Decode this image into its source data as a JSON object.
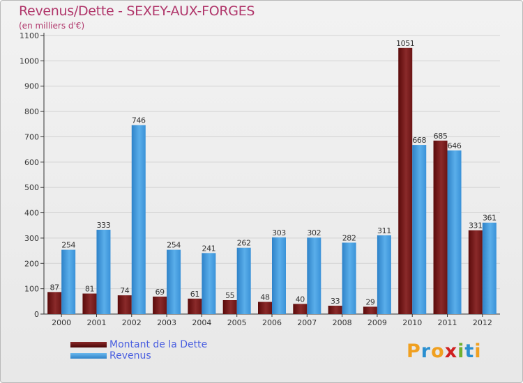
{
  "chart_data": {
    "type": "bar",
    "title": "Revenus/Dette - SEXEY-AUX-FORGES",
    "subtitle": "(en milliers d'€)",
    "categories": [
      "2000",
      "2001",
      "2002",
      "2003",
      "2004",
      "2005",
      "2006",
      "2007",
      "2008",
      "2009",
      "2010",
      "2011",
      "2012"
    ],
    "series": [
      {
        "name": "Montant de la Dette",
        "color": "#7a1a1a",
        "values": [
          87,
          81,
          74,
          69,
          61,
          55,
          48,
          40,
          33,
          29,
          1051,
          685,
          331
        ]
      },
      {
        "name": "Revenus",
        "color": "#3a92d8",
        "values": [
          254,
          333,
          746,
          254,
          241,
          262,
          303,
          302,
          282,
          311,
          668,
          646,
          361
        ]
      }
    ],
    "ylim": [
      0,
      1100
    ],
    "yticks": [
      0,
      100,
      200,
      300,
      400,
      500,
      600,
      700,
      800,
      900,
      1000,
      1100
    ],
    "grid": true,
    "legend_position": "bottom-left"
  },
  "logo": {
    "letters": [
      "P",
      "r",
      "o",
      "x",
      "i",
      "t",
      "i"
    ],
    "colors": [
      "#f0a020",
      "#2a8fd0",
      "#f0a020",
      "#d02020",
      "#70b030",
      "#2a8fd0",
      "#f0a020"
    ]
  }
}
